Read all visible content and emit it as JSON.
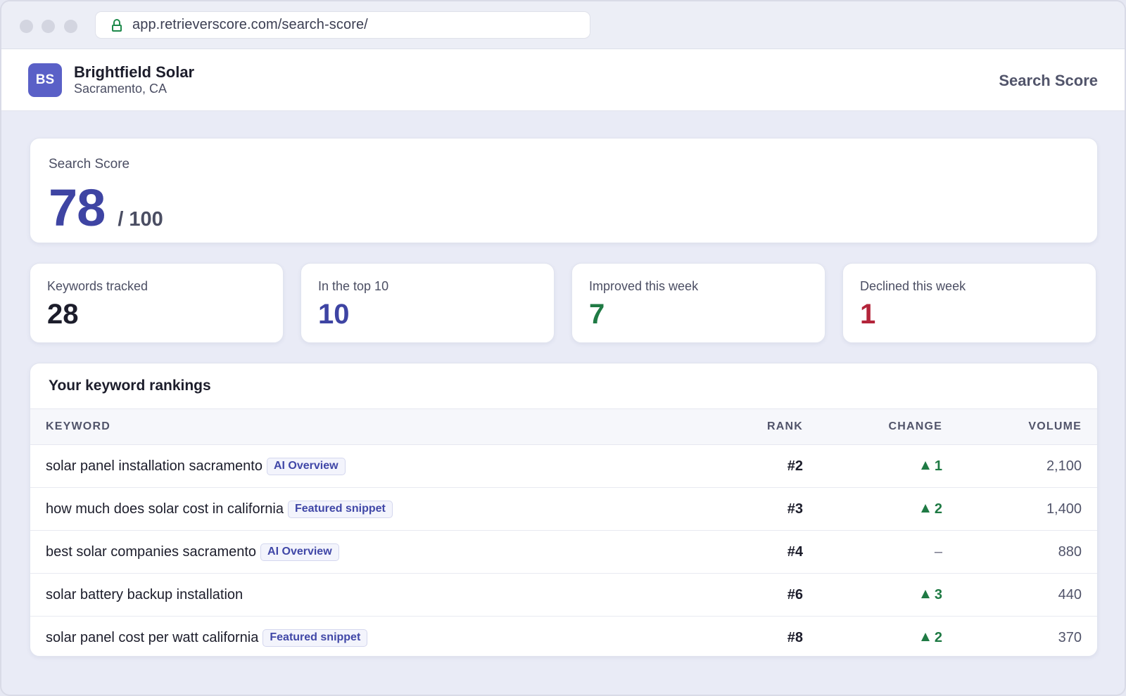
{
  "browser": {
    "url": "app.retrieverscore.com/search-score/"
  },
  "header": {
    "avatar_initials": "BS",
    "business_name": "Brightfield Solar",
    "location": "Sacramento, CA",
    "title": "Search Score"
  },
  "score": {
    "label": "Search Score",
    "value": "78",
    "max": "/ 100"
  },
  "stats": [
    {
      "label": "Keywords tracked",
      "value": "28",
      "color": "#1c1d2b"
    },
    {
      "label": "In the top 10",
      "value": "10",
      "color": "#3e44a3"
    },
    {
      "label": "Improved this week",
      "value": "7",
      "color": "#1f7a44"
    },
    {
      "label": "Declined this week",
      "value": "1",
      "color": "#b3243a"
    }
  ],
  "rankings": {
    "title": "Your keyword rankings",
    "columns": {
      "keyword": "KEYWORD",
      "rank": "RANK",
      "change": "CHANGE",
      "volume": "VOLUME"
    },
    "rows": [
      {
        "keyword": "solar panel installation sacramento",
        "badge": "AI Overview",
        "rank": "#2",
        "change": "1",
        "direction": "up",
        "volume": "2,100"
      },
      {
        "keyword": "how much does solar cost in california",
        "badge": "Featured snippet",
        "rank": "#3",
        "change": "2",
        "direction": "up",
        "volume": "1,400"
      },
      {
        "keyword": "best solar companies sacramento",
        "badge": "AI Overview",
        "rank": "#4",
        "change": "–",
        "direction": "none",
        "volume": "880"
      },
      {
        "keyword": "solar battery backup installation",
        "badge": "",
        "rank": "#6",
        "change": "3",
        "direction": "up",
        "volume": "440"
      },
      {
        "keyword": "solar panel cost per watt california",
        "badge": "Featured snippet",
        "rank": "#8",
        "change": "2",
        "direction": "up",
        "volume": "370"
      }
    ]
  }
}
